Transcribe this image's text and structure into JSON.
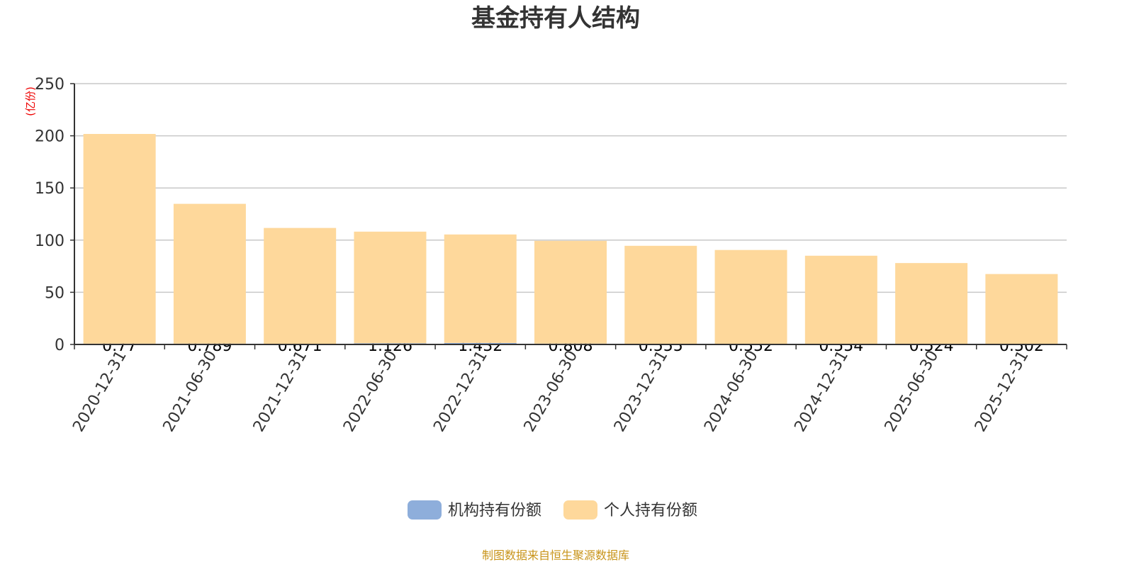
{
  "chart_data": {
    "type": "bar",
    "stacked": true,
    "title": "基金持有人结构",
    "ylabel": "(亿份)",
    "ylim": [
      0,
      250
    ],
    "yticks": [
      0,
      50,
      100,
      150,
      200,
      250
    ],
    "grid": true,
    "legend_position": "bottom",
    "categories": [
      "2020-12-31",
      "2021-06-30",
      "2021-12-31",
      "2022-06-30",
      "2022-12-31",
      "2023-06-30",
      "2023-12-31",
      "2024-06-30",
      "2024-12-31",
      "2025-06-30",
      "2025-12-31"
    ],
    "series": [
      {
        "name": "机构持有份额",
        "color": "#8eaedb",
        "values": [
          0.77,
          0.789,
          0.671,
          1.126,
          1.432,
          0.808,
          0.555,
          0.552,
          0.554,
          0.524,
          0.502
        ],
        "labels": [
          "0.77",
          "0.789",
          "0.671",
          "1.126",
          "1.432",
          "0.808",
          "0.555",
          "0.552",
          "0.554",
          "0.524",
          "0.502"
        ]
      },
      {
        "name": "个人持有份额",
        "color": "#fed89b",
        "values": [
          201,
          134,
          111,
          107,
          104,
          98.5,
          94,
          90,
          84.5,
          77.5,
          67
        ]
      }
    ]
  },
  "source": "制图数据来自恒生聚源数据库"
}
